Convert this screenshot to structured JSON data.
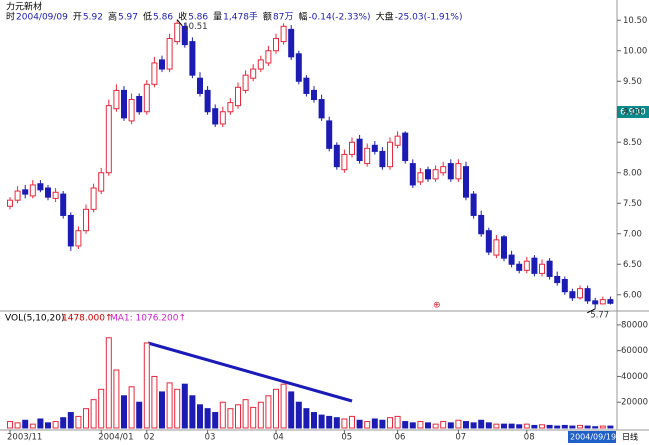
{
  "header": {
    "stock_name": "力元新材",
    "info": [
      {
        "label": "时",
        "value": "2004/09/09"
      },
      {
        "label": "开",
        "value": "5.92"
      },
      {
        "label": "高",
        "value": "5.97"
      },
      {
        "label": "低",
        "value": "5.86"
      },
      {
        "label": "收",
        "value": "5.86"
      },
      {
        "label": "量",
        "value": "1,478手"
      },
      {
        "label": "额",
        "value": "87万"
      },
      {
        "label": "幅",
        "value": "-0.14(-2.33%)"
      },
      {
        "label": "大盘",
        "value": "-25.03(-1.91%)"
      }
    ]
  },
  "chart_data": {
    "type": "candlestick",
    "categories": [
      "2003/11",
      null,
      null,
      null,
      null,
      null,
      null,
      null,
      null,
      null,
      null,
      null,
      "2004/01",
      null,
      null,
      null,
      null,
      null,
      "02",
      null,
      null,
      null,
      null,
      null,
      null,
      null,
      "03",
      null,
      null,
      null,
      null,
      null,
      null,
      null,
      null,
      "04",
      null,
      null,
      null,
      null,
      null,
      null,
      null,
      null,
      "05",
      null,
      null,
      null,
      null,
      null,
      null,
      "06",
      null,
      null,
      null,
      null,
      null,
      null,
      null,
      "07",
      null,
      null,
      null,
      null,
      null,
      null,
      null,
      null,
      "08",
      null,
      null,
      null,
      null,
      null,
      null,
      null,
      null,
      null,
      null,
      null
    ],
    "open": [
      7.45,
      7.55,
      7.72,
      7.62,
      7.82,
      7.75,
      7.58,
      7.65,
      7.3,
      6.8,
      7.05,
      7.4,
      7.7,
      8.0,
      9.05,
      9.35,
      8.85,
      9.25,
      9.0,
      9.45,
      9.85,
      9.7,
      10.15,
      10.4,
      10.15,
      9.55,
      9.35,
      9.05,
      8.8,
      9.0,
      9.1,
      9.35,
      9.55,
      9.7,
      9.8,
      10.0,
      10.15,
      10.35,
      9.95,
      9.55,
      9.35,
      9.2,
      8.85,
      8.45,
      8.05,
      8.3,
      8.55,
      8.15,
      8.45,
      8.35,
      8.1,
      8.45,
      8.65,
      8.15,
      7.85,
      8.05,
      7.9,
      8.0,
      8.15,
      7.9,
      8.1,
      7.65,
      7.3,
      7.05,
      6.65,
      6.95,
      6.65,
      6.5,
      6.4,
      6.6,
      6.35,
      6.55,
      6.3,
      6.25,
      6.05,
      5.95,
      6.1,
      5.9,
      5.85,
      5.92
    ],
    "high": [
      7.6,
      7.78,
      7.8,
      7.88,
      7.88,
      7.8,
      7.75,
      7.7,
      7.35,
      7.12,
      7.48,
      7.82,
      8.08,
      9.2,
      9.45,
      9.42,
      9.3,
      9.3,
      9.52,
      9.9,
      9.92,
      10.28,
      10.51,
      10.45,
      10.22,
      9.65,
      9.42,
      9.12,
      9.08,
      9.22,
      9.48,
      9.68,
      9.78,
      9.92,
      10.08,
      10.28,
      10.45,
      10.42,
      10.0,
      9.6,
      9.42,
      9.28,
      8.92,
      8.5,
      8.38,
      8.58,
      8.62,
      8.48,
      8.52,
      8.42,
      8.58,
      8.68,
      8.68,
      8.22,
      8.08,
      8.1,
      8.12,
      8.18,
      8.22,
      8.22,
      8.18,
      7.7,
      7.38,
      7.1,
      6.98,
      6.98,
      6.72,
      6.55,
      6.62,
      6.65,
      6.58,
      6.6,
      6.38,
      6.3,
      6.1,
      6.15,
      6.15,
      5.95,
      5.97,
      5.97
    ],
    "low": [
      7.4,
      7.5,
      7.58,
      7.58,
      7.68,
      7.55,
      7.52,
      7.25,
      6.72,
      6.75,
      7.0,
      7.35,
      7.65,
      7.95,
      9.0,
      8.85,
      8.8,
      8.95,
      8.95,
      9.4,
      9.65,
      9.65,
      10.1,
      10.05,
      9.55,
      9.25,
      8.95,
      8.75,
      8.75,
      8.95,
      9.05,
      9.3,
      9.5,
      9.65,
      9.75,
      9.95,
      10.1,
      9.85,
      9.45,
      9.25,
      9.15,
      8.85,
      8.35,
      8.05,
      8.0,
      8.25,
      8.15,
      8.1,
      8.3,
      8.05,
      8.05,
      8.4,
      8.15,
      7.75,
      7.8,
      7.85,
      7.85,
      7.95,
      7.85,
      7.85,
      7.55,
      7.25,
      6.95,
      6.65,
      6.6,
      6.55,
      6.45,
      6.35,
      6.35,
      6.3,
      6.3,
      6.25,
      6.15,
      6.0,
      5.9,
      5.92,
      5.85,
      5.77,
      5.84,
      5.84
    ],
    "close": [
      7.55,
      7.7,
      7.65,
      7.8,
      7.72,
      7.6,
      7.68,
      7.3,
      6.8,
      7.05,
      7.4,
      7.75,
      8.0,
      9.1,
      9.35,
      8.9,
      9.2,
      9.0,
      9.45,
      9.8,
      9.7,
      10.2,
      10.45,
      10.1,
      9.6,
      9.3,
      9.0,
      8.8,
      9.0,
      9.15,
      9.4,
      9.6,
      9.7,
      9.85,
      10.0,
      10.2,
      10.4,
      9.9,
      9.5,
      9.3,
      9.2,
      8.9,
      8.4,
      8.1,
      8.3,
      8.5,
      8.2,
      8.4,
      8.35,
      8.1,
      8.5,
      8.6,
      8.2,
      7.8,
      8.0,
      7.9,
      8.05,
      8.1,
      7.9,
      8.15,
      7.6,
      7.3,
      7.0,
      6.7,
      6.9,
      6.6,
      6.5,
      6.4,
      6.55,
      6.35,
      6.5,
      6.3,
      6.2,
      6.05,
      5.95,
      6.1,
      5.9,
      5.85,
      5.92,
      5.86
    ],
    "up_color": "#e8283c",
    "down_color": "#1c1cb4",
    "ylim": [
      5.75,
      10.75
    ],
    "yticks": [
      {
        "value": 6,
        "label": "6.00"
      },
      {
        "value": 6.5,
        "label": "6.50"
      },
      {
        "value": 7,
        "label": "7.00"
      },
      {
        "value": 7.5,
        "label": "7.50"
      },
      {
        "value": 8,
        "label": "8.00"
      },
      {
        "value": 8.5,
        "label": "8.50"
      },
      {
        "value": 9,
        "label": "9.00"
      },
      {
        "value": 9.5,
        "label": "9.50"
      },
      {
        "value": 10,
        "label": "10.00"
      },
      {
        "value": 10.5,
        "label": "10.50"
      }
    ],
    "cursor_label": "6.930",
    "cursor_date": "2004/09/19",
    "period": "日线",
    "volume": {
      "title": "VOL(5,10,20)",
      "value_label": "1478.000↑",
      "ma_label": "MA1: 1076.200↑",
      "values": [
        5000,
        4000,
        6000,
        3000,
        7000,
        4000,
        5000,
        8000,
        12000,
        9000,
        15000,
        22000,
        30000,
        70000,
        45000,
        25000,
        32000,
        20000,
        66000,
        40000,
        28000,
        35000,
        30000,
        34000,
        25000,
        18000,
        15000,
        12000,
        20000,
        15000,
        18000,
        22000,
        16000,
        20000,
        25000,
        30000,
        34000,
        28000,
        20000,
        15000,
        12000,
        10000,
        9000,
        8000,
        7000,
        9000,
        6000,
        5000,
        7000,
        6000,
        8000,
        9000,
        5000,
        4000,
        5000,
        4000,
        3000,
        5000,
        4000,
        6000,
        5000,
        4000,
        6000,
        4000,
        3000,
        3000,
        3000,
        2500,
        3000,
        2000,
        2500,
        2000,
        1500,
        2000,
        1500,
        2000,
        1500,
        1000,
        1500,
        1478
      ],
      "ylim": [
        0,
        90000
      ],
      "yticks": [
        20000,
        40000,
        60000,
        80000
      ]
    }
  }
}
